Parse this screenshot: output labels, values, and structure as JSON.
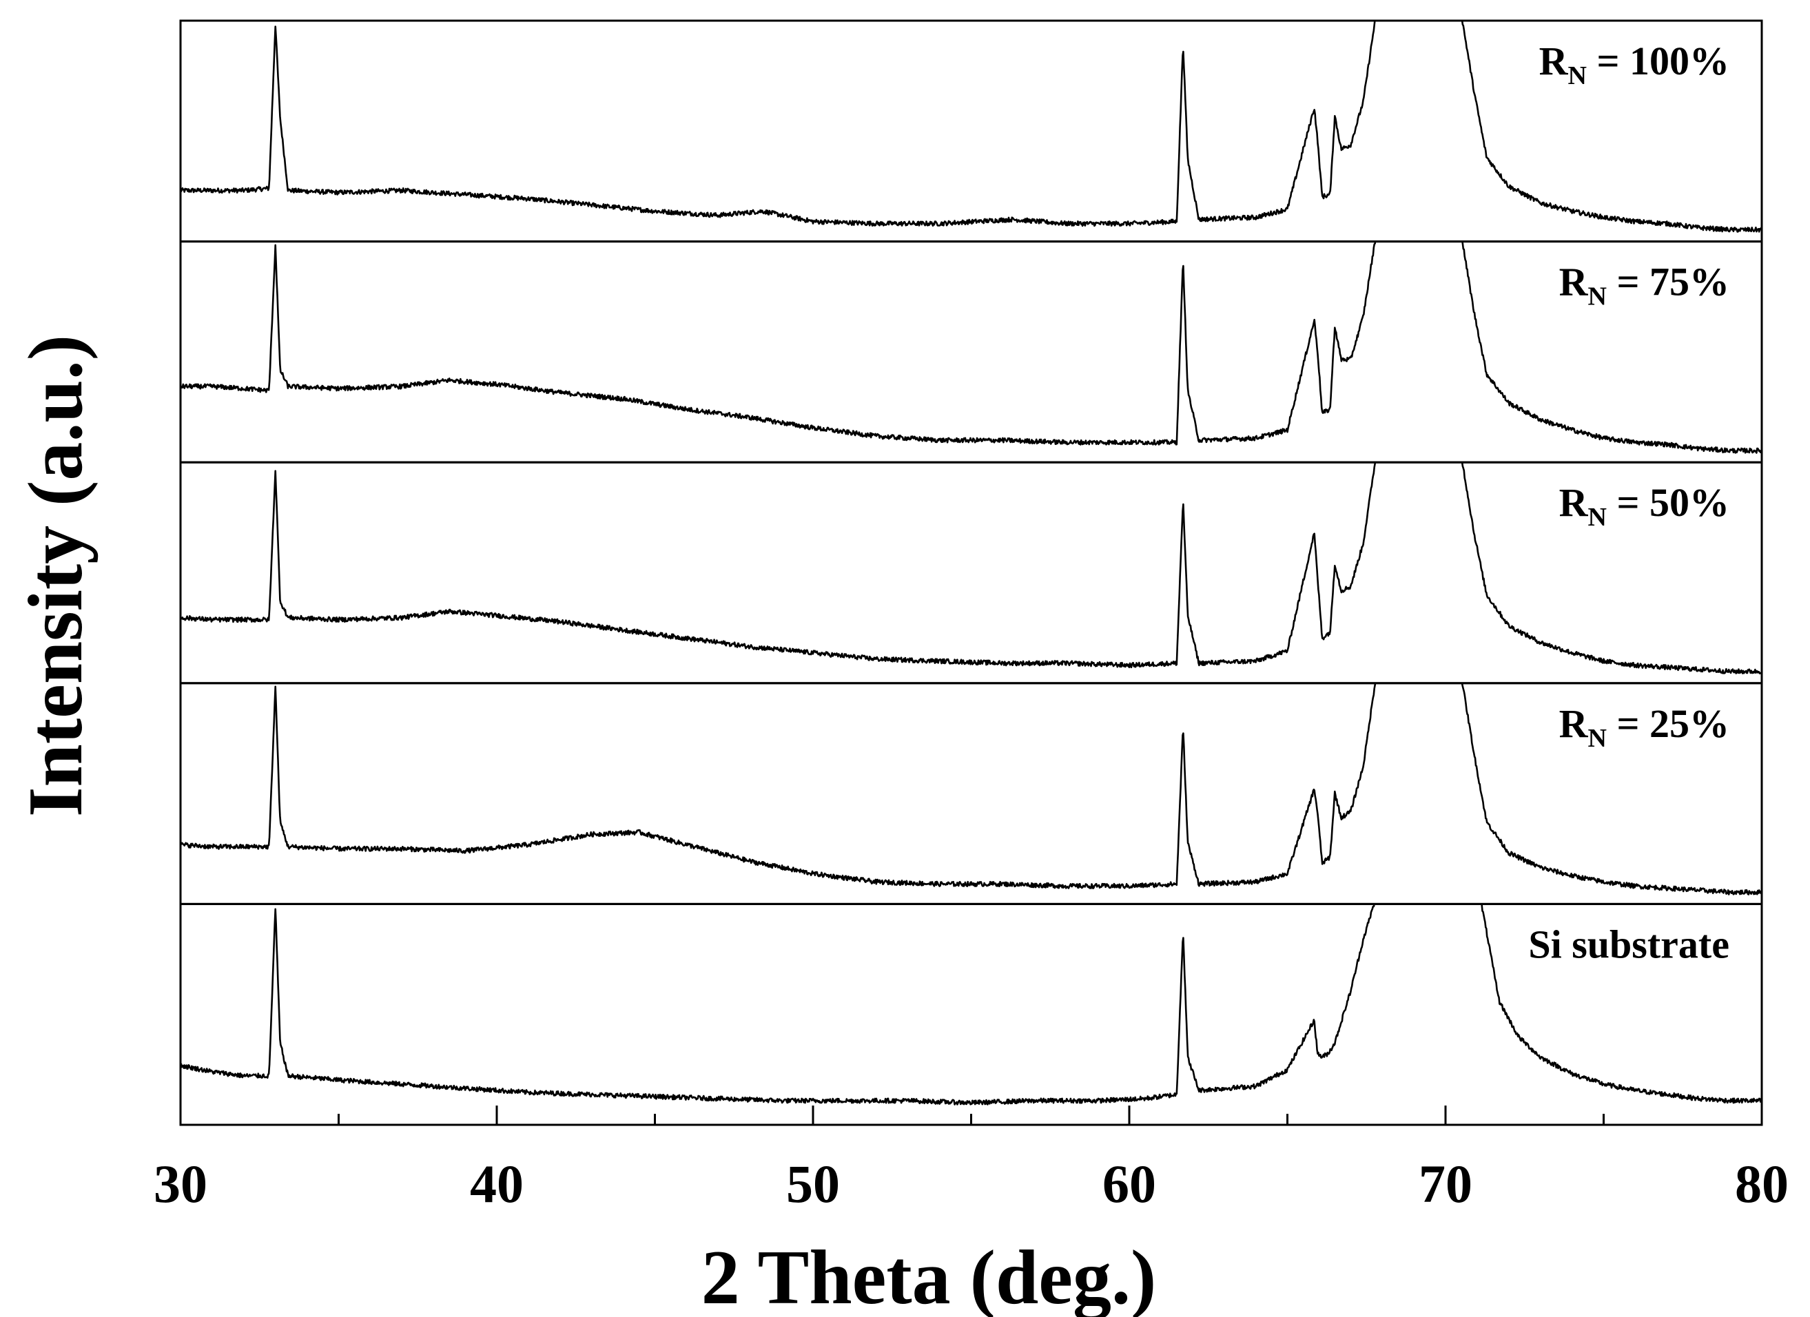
{
  "chart_data": {
    "type": "line",
    "title": "",
    "xlabel": "2 Theta (deg.)",
    "ylabel": "Intensity (a.u.)",
    "xlim": [
      30,
      80
    ],
    "xticks": [
      30,
      40,
      50,
      60,
      70,
      80
    ],
    "tick_labels": [
      "30",
      "40",
      "50",
      "60",
      "70",
      "80"
    ],
    "grid": false,
    "stacked_panels": true,
    "panels": [
      {
        "label_main": "R",
        "label_sub": "N",
        "label_rest": " = 100%",
        "x": [
          30,
          31,
          32,
          32.8,
          33.0,
          33.15,
          33.4,
          35,
          37,
          39,
          41,
          43,
          45,
          47,
          48.4,
          50,
          52,
          54,
          56.3,
          58,
          60,
          61.5,
          61.7,
          61.85,
          62.2,
          64,
          65,
          65.85,
          65.95,
          66.1,
          66.35,
          66.5,
          66.7,
          67.0,
          67.4,
          67.8,
          70.5,
          70.9,
          71.3,
          72,
          73,
          74,
          75,
          76,
          77,
          78,
          79,
          80
        ],
        "y": [
          0.2,
          0.2,
          0.2,
          0.21,
          1.0,
          0.55,
          0.2,
          0.19,
          0.2,
          0.18,
          0.16,
          0.13,
          0.1,
          0.08,
          0.1,
          0.05,
          0.04,
          0.04,
          0.06,
          0.04,
          0.04,
          0.05,
          0.91,
          0.35,
          0.06,
          0.07,
          0.11,
          0.6,
          0.45,
          0.17,
          0.18,
          0.56,
          0.4,
          0.42,
          0.63,
          1.05,
          1.05,
          0.68,
          0.36,
          0.22,
          0.14,
          0.1,
          0.07,
          0.05,
          0.04,
          0.02,
          0.01,
          0.01
        ]
      },
      {
        "label_main": "R",
        "label_sub": "N",
        "label_rest": " = 75%",
        "x": [
          30,
          31,
          32,
          32.8,
          33.0,
          33.15,
          33.4,
          35,
          37,
          38.5,
          40,
          42,
          44,
          46,
          48,
          50,
          52,
          54,
          56,
          58,
          60,
          61.5,
          61.7,
          61.85,
          62.2,
          64,
          65,
          65.85,
          65.95,
          66.1,
          66.35,
          66.5,
          66.7,
          67.0,
          67.4,
          67.8,
          70.5,
          70.9,
          71.3,
          72,
          73,
          74,
          75,
          76,
          77,
          78,
          79,
          80
        ],
        "y": [
          0.32,
          0.32,
          0.31,
          0.3,
          1.0,
          0.4,
          0.32,
          0.31,
          0.32,
          0.35,
          0.33,
          0.29,
          0.26,
          0.21,
          0.17,
          0.12,
          0.08,
          0.06,
          0.06,
          0.05,
          0.05,
          0.05,
          0.93,
          0.3,
          0.06,
          0.07,
          0.11,
          0.64,
          0.5,
          0.19,
          0.21,
          0.61,
          0.45,
          0.45,
          0.66,
          1.05,
          1.05,
          0.68,
          0.38,
          0.24,
          0.16,
          0.11,
          0.07,
          0.05,
          0.04,
          0.02,
          0.01,
          0.01
        ]
      },
      {
        "label_main": "R",
        "label_sub": "N",
        "label_rest": " = 50%",
        "x": [
          30,
          31,
          32,
          32.8,
          33.0,
          33.15,
          33.4,
          35,
          37,
          38.5,
          40,
          42,
          44,
          46,
          48,
          50,
          52,
          54,
          56,
          58,
          60,
          61.5,
          61.7,
          61.85,
          62.2,
          64,
          65,
          65.85,
          65.95,
          66.1,
          66.35,
          66.5,
          66.7,
          67.0,
          67.4,
          67.8,
          70.5,
          70.9,
          71.3,
          72,
          73,
          74,
          75,
          76,
          77,
          78,
          79,
          80
        ],
        "y": [
          0.27,
          0.26,
          0.26,
          0.26,
          0.98,
          0.35,
          0.27,
          0.26,
          0.27,
          0.3,
          0.28,
          0.25,
          0.21,
          0.17,
          0.13,
          0.1,
          0.07,
          0.06,
          0.05,
          0.05,
          0.04,
          0.05,
          0.84,
          0.28,
          0.05,
          0.06,
          0.11,
          0.68,
          0.47,
          0.17,
          0.2,
          0.53,
          0.4,
          0.42,
          0.63,
          1.05,
          1.05,
          0.68,
          0.38,
          0.23,
          0.15,
          0.1,
          0.06,
          0.04,
          0.03,
          0.02,
          0.01,
          0.01
        ]
      },
      {
        "label_main": "R",
        "label_sub": "N",
        "label_rest": " = 25%",
        "x": [
          30,
          31,
          32,
          32.8,
          33.0,
          33.15,
          33.4,
          35,
          37,
          39,
          41,
          43,
          44.5,
          46,
          48,
          50,
          52,
          54,
          56,
          58,
          60,
          61.5,
          61.7,
          61.85,
          62.2,
          64,
          65,
          65.85,
          65.95,
          66.1,
          66.35,
          66.5,
          66.7,
          67.0,
          67.4,
          67.8,
          70.5,
          70.9,
          71.3,
          72,
          73,
          74,
          75,
          76,
          77,
          78,
          79,
          80
        ],
        "y": [
          0.24,
          0.23,
          0.23,
          0.23,
          1.0,
          0.35,
          0.23,
          0.22,
          0.22,
          0.21,
          0.24,
          0.29,
          0.3,
          0.24,
          0.16,
          0.1,
          0.06,
          0.05,
          0.05,
          0.04,
          0.04,
          0.05,
          0.81,
          0.25,
          0.05,
          0.06,
          0.1,
          0.51,
          0.4,
          0.15,
          0.18,
          0.49,
          0.37,
          0.4,
          0.62,
          1.05,
          1.05,
          0.68,
          0.35,
          0.2,
          0.13,
          0.09,
          0.06,
          0.04,
          0.03,
          0.02,
          0.01,
          0.01
        ]
      },
      {
        "label_main": "Si substrate",
        "label_sub": "",
        "label_rest": "",
        "x": [
          30,
          31,
          32,
          32.8,
          33.0,
          33.15,
          33.4,
          35,
          37,
          39,
          41,
          43,
          45,
          47,
          49,
          51,
          53,
          55,
          57,
          59,
          60.5,
          61.5,
          61.7,
          61.85,
          62.2,
          64,
          65,
          65.85,
          65.95,
          66.1,
          66.3,
          66.5,
          67.0,
          67.4,
          67.8,
          71.1,
          71.4,
          71.7,
          72.3,
          73,
          74,
          75,
          76,
          77,
          78,
          79,
          80
        ],
        "y": [
          0.24,
          0.21,
          0.19,
          0.19,
          1.0,
          0.35,
          0.19,
          0.17,
          0.15,
          0.13,
          0.11,
          0.1,
          0.09,
          0.08,
          0.07,
          0.07,
          0.07,
          0.06,
          0.07,
          0.07,
          0.08,
          0.1,
          0.89,
          0.28,
          0.12,
          0.14,
          0.22,
          0.46,
          0.3,
          0.28,
          0.3,
          0.35,
          0.6,
          0.85,
          1.05,
          1.05,
          0.8,
          0.55,
          0.38,
          0.28,
          0.2,
          0.15,
          0.12,
          0.1,
          0.08,
          0.07,
          0.07
        ]
      }
    ]
  }
}
